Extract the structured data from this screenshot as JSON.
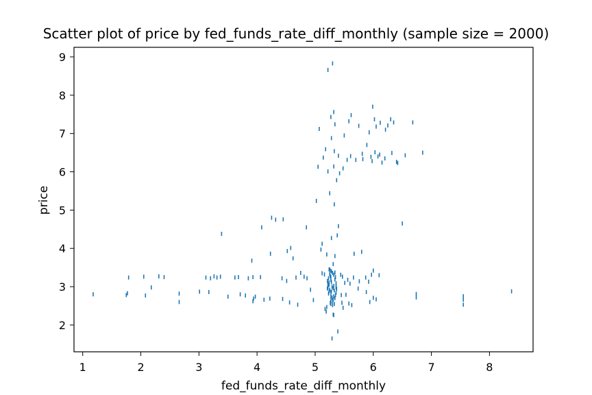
{
  "chart_data": {
    "type": "scatter",
    "title": "Scatter plot of price by fed_funds_rate_diff_monthly (sample size = 2000)",
    "xlabel": "fed_funds_rate_diff_monthly",
    "ylabel": "price",
    "xlim": [
      0.85,
      8.75
    ],
    "ylim": [
      1.3,
      9.25
    ],
    "xticks": [
      "1",
      "2",
      "3",
      "4",
      "5",
      "6",
      "7",
      "8"
    ],
    "yticks": [
      "2",
      "3",
      "4",
      "5",
      "6",
      "7",
      "8",
      "9"
    ],
    "grid": false,
    "legend": "none",
    "marker_color": "#1f77b4",
    "points": [
      [
        1.18,
        2.8
      ],
      [
        1.75,
        2.78
      ],
      [
        1.77,
        2.83
      ],
      [
        1.79,
        3.24
      ],
      [
        2.05,
        3.26
      ],
      [
        2.08,
        2.77
      ],
      [
        2.18,
        2.98
      ],
      [
        2.31,
        3.27
      ],
      [
        2.4,
        3.25
      ],
      [
        2.66,
        2.82
      ],
      [
        2.66,
        2.6
      ],
      [
        3.01,
        2.87
      ],
      [
        3.12,
        3.24
      ],
      [
        3.17,
        2.86
      ],
      [
        3.2,
        3.22
      ],
      [
        3.26,
        3.27
      ],
      [
        3.31,
        3.24
      ],
      [
        3.37,
        3.26
      ],
      [
        3.39,
        4.38
      ],
      [
        3.5,
        2.74
      ],
      [
        3.62,
        3.24
      ],
      [
        3.68,
        3.25
      ],
      [
        3.71,
        2.8
      ],
      [
        3.8,
        2.77
      ],
      [
        3.85,
        3.22
      ],
      [
        3.91,
        3.68
      ],
      [
        3.93,
        3.25
      ],
      [
        3.93,
        2.62
      ],
      [
        3.94,
        2.69
      ],
      [
        3.97,
        2.74
      ],
      [
        4.06,
        3.25
      ],
      [
        4.08,
        4.55
      ],
      [
        4.12,
        2.66
      ],
      [
        4.22,
        2.69
      ],
      [
        4.23,
        3.86
      ],
      [
        4.25,
        4.8
      ],
      [
        4.32,
        4.75
      ],
      [
        4.43,
        3.22
      ],
      [
        4.44,
        2.68
      ],
      [
        4.45,
        4.76
      ],
      [
        4.51,
        3.15
      ],
      [
        4.52,
        3.93
      ],
      [
        4.56,
        2.59
      ],
      [
        4.58,
        4.01
      ],
      [
        4.62,
        3.74
      ],
      [
        4.67,
        3.24
      ],
      [
        4.7,
        2.53
      ],
      [
        4.75,
        3.36
      ],
      [
        4.81,
        3.26
      ],
      [
        4.85,
        4.55
      ],
      [
        4.86,
        3.22
      ],
      [
        4.92,
        2.92
      ],
      [
        4.97,
        2.65
      ],
      [
        5.02,
        5.24
      ],
      [
        5.05,
        6.13
      ],
      [
        5.07,
        7.12
      ],
      [
        5.1,
        3.97
      ],
      [
        5.12,
        3.35
      ],
      [
        5.12,
        4.12
      ],
      [
        5.14,
        6.37
      ],
      [
        5.16,
        3.32
      ],
      [
        5.17,
        2.42
      ],
      [
        5.18,
        6.59
      ],
      [
        5.19,
        2.35
      ],
      [
        5.2,
        2.47
      ],
      [
        5.2,
        3.84
      ],
      [
        5.22,
        8.66
      ],
      [
        5.22,
        6.01
      ],
      [
        5.22,
        3.02
      ],
      [
        5.24,
        2.87
      ],
      [
        5.25,
        3.45
      ],
      [
        5.25,
        5.44
      ],
      [
        5.26,
        3.42
      ],
      [
        5.27,
        3.25
      ],
      [
        5.27,
        2.75
      ],
      [
        5.27,
        2.55
      ],
      [
        5.27,
        7.43
      ],
      [
        5.28,
        4.27
      ],
      [
        5.28,
        6.88
      ],
      [
        5.29,
        1.65
      ],
      [
        5.3,
        8.83
      ],
      [
        5.31,
        3.59
      ],
      [
        5.31,
        2.27
      ],
      [
        5.32,
        2.26
      ],
      [
        5.32,
        6.14
      ],
      [
        5.32,
        7.56
      ],
      [
        5.33,
        6.54
      ],
      [
        5.33,
        5.15
      ],
      [
        5.34,
        3.8
      ],
      [
        5.34,
        7.24
      ],
      [
        5.36,
        2.98
      ],
      [
        5.37,
        5.78
      ],
      [
        5.38,
        4.34
      ],
      [
        5.39,
        1.83
      ],
      [
        5.4,
        6.42
      ],
      [
        5.4,
        4.58
      ],
      [
        5.42,
        5.96
      ],
      [
        5.44,
        3.31
      ],
      [
        5.45,
        2.78
      ],
      [
        5.46,
        2.58
      ],
      [
        5.47,
        3.26
      ],
      [
        5.48,
        2.45
      ],
      [
        5.48,
        6.09
      ],
      [
        5.5,
        6.95
      ],
      [
        5.51,
        3.1
      ],
      [
        5.53,
        2.79
      ],
      [
        5.55,
        6.31
      ],
      [
        5.56,
        3.18
      ],
      [
        5.58,
        2.56
      ],
      [
        5.58,
        7.32
      ],
      [
        5.6,
        3.08
      ],
      [
        5.61,
        6.41
      ],
      [
        5.62,
        7.48
      ],
      [
        5.63,
        2.52
      ],
      [
        5.66,
        3.24
      ],
      [
        5.67,
        3.86
      ],
      [
        5.7,
        6.31
      ],
      [
        5.74,
        2.95
      ],
      [
        5.75,
        7.2
      ],
      [
        5.76,
        3.14
      ],
      [
        5.8,
        3.91
      ],
      [
        5.81,
        6.47
      ],
      [
        5.82,
        6.33
      ],
      [
        5.87,
        3.24
      ],
      [
        5.88,
        2.86
      ],
      [
        5.89,
        6.7
      ],
      [
        5.92,
        3.13
      ],
      [
        5.93,
        7.03
      ],
      [
        5.94,
        2.6
      ],
      [
        5.96,
        6.39
      ],
      [
        5.97,
        3.31
      ],
      [
        5.98,
        6.28
      ],
      [
        5.99,
        7.7
      ],
      [
        6.0,
        3.42
      ],
      [
        6.0,
        2.71
      ],
      [
        6.02,
        7.37
      ],
      [
        6.03,
        6.51
      ],
      [
        6.05,
        2.67
      ],
      [
        6.05,
        7.18
      ],
      [
        6.08,
        6.4
      ],
      [
        6.1,
        3.3
      ],
      [
        6.11,
        6.45
      ],
      [
        6.12,
        7.28
      ],
      [
        6.15,
        6.24
      ],
      [
        6.2,
        6.35
      ],
      [
        6.21,
        7.1
      ],
      [
        6.25,
        7.21
      ],
      [
        6.3,
        7.37
      ],
      [
        6.32,
        6.49
      ],
      [
        6.35,
        7.29
      ],
      [
        6.4,
        6.26
      ],
      [
        6.42,
        6.23
      ],
      [
        6.5,
        4.65
      ],
      [
        6.55,
        6.43
      ],
      [
        6.68,
        7.29
      ],
      [
        6.74,
        2.72
      ],
      [
        6.74,
        2.81
      ],
      [
        6.85,
        6.5
      ],
      [
        7.55,
        2.66
      ],
      [
        7.55,
        2.75
      ],
      [
        7.55,
        2.53
      ],
      [
        8.38,
        2.88
      ],
      [
        5.21,
        3.15
      ],
      [
        5.22,
        2.98
      ],
      [
        5.23,
        3.22
      ],
      [
        5.24,
        3.05
      ],
      [
        5.25,
        2.92
      ],
      [
        5.26,
        3.28
      ],
      [
        5.27,
        2.86
      ],
      [
        5.28,
        3.12
      ],
      [
        5.29,
        2.72
      ],
      [
        5.3,
        3.36
      ],
      [
        5.31,
        2.66
      ],
      [
        5.32,
        3.02
      ],
      [
        5.33,
        2.9
      ],
      [
        5.34,
        3.19
      ],
      [
        5.35,
        2.78
      ],
      [
        5.36,
        3.09
      ],
      [
        5.37,
        2.94
      ],
      [
        5.26,
        2.58
      ],
      [
        5.28,
        3.4
      ],
      [
        5.3,
        2.62
      ],
      [
        5.32,
        3.31
      ],
      [
        5.34,
        2.7
      ],
      [
        5.23,
        2.82
      ],
      [
        5.35,
        3.25
      ],
      [
        5.24,
        3.45
      ],
      [
        5.33,
        2.55
      ],
      [
        5.22,
        3.08
      ],
      [
        5.36,
        2.84
      ],
      [
        5.25,
        3.33
      ],
      [
        5.31,
        2.96
      ],
      [
        5.27,
        3.18
      ],
      [
        5.29,
        3.0
      ],
      [
        5.3,
        2.52
      ],
      [
        5.27,
        2.64
      ],
      [
        5.32,
        2.75
      ],
      [
        5.24,
        3.11
      ],
      [
        5.36,
        3.03
      ],
      [
        5.28,
        2.88
      ],
      [
        5.21,
        2.95
      ],
      [
        5.34,
        3.37
      ]
    ]
  }
}
